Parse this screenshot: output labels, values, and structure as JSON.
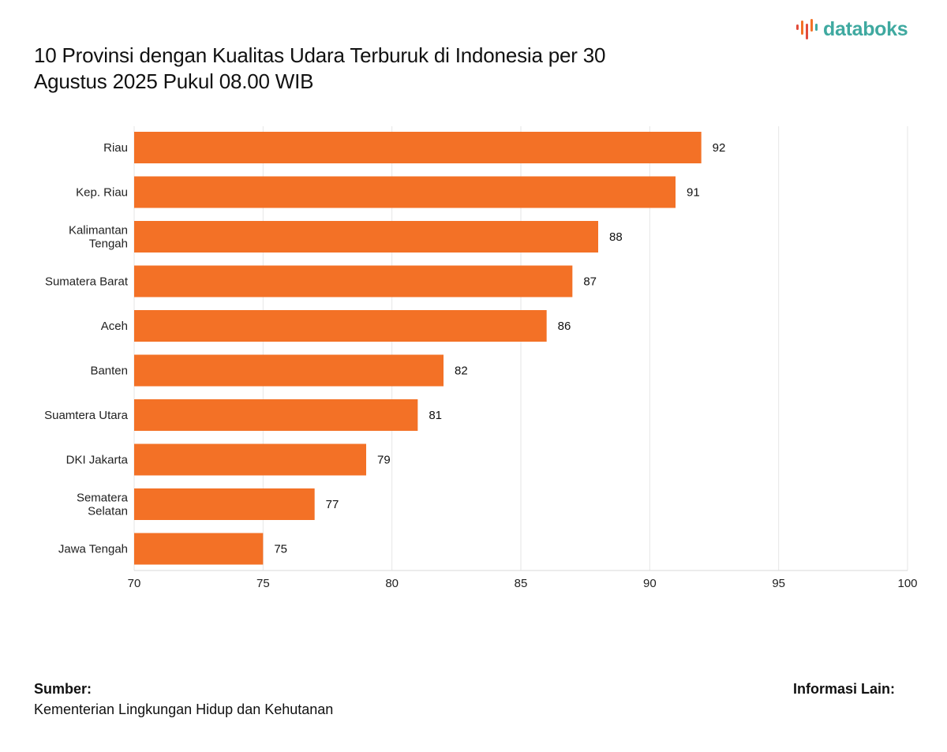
{
  "brand": {
    "name": "databoks",
    "accent": "#3fa9a0"
  },
  "header": {
    "title_line1": "10 Provinsi dengan Kualitas Udara Terburuk di Indonesia per 30",
    "title_line2": "Agustus 2025 Pukul 08.00 WIB"
  },
  "footer": {
    "source_heading": "Sumber:",
    "source_text": "Kementerian Lingkungan Hidup dan Kehutanan",
    "info_heading": "Informasi Lain:"
  },
  "chart_data": {
    "type": "bar",
    "orientation": "horizontal",
    "categories": [
      [
        "Riau"
      ],
      [
        "Kep. Riau"
      ],
      [
        "Kalimantan",
        "Tengah"
      ],
      [
        "Sumatera Barat"
      ],
      [
        "Aceh"
      ],
      [
        "Banten"
      ],
      [
        "Suamtera Utara"
      ],
      [
        "DKI Jakarta"
      ],
      [
        "Sematera",
        "Selatan"
      ],
      [
        "Jawa Tengah"
      ]
    ],
    "values": [
      92,
      91,
      88,
      87,
      86,
      82,
      81,
      79,
      77,
      75
    ],
    "xlim": [
      70,
      100
    ],
    "xticks": [
      70,
      75,
      80,
      85,
      90,
      95,
      100
    ],
    "grid": true,
    "bar_color": "#f37126",
    "grid_color": "#e6e6e6",
    "data_labels": true
  }
}
